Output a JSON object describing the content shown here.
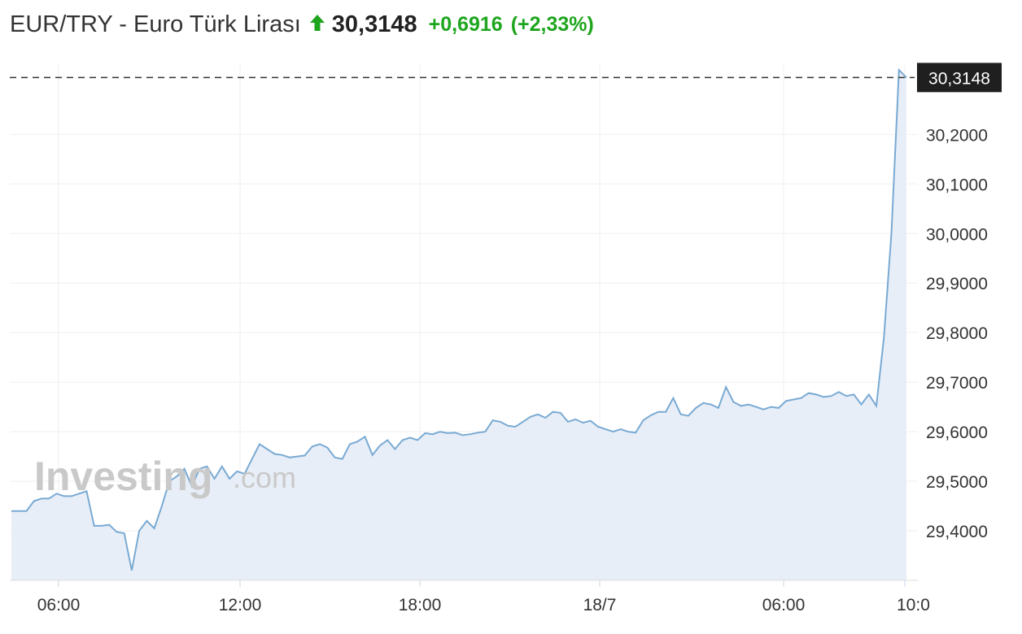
{
  "header": {
    "title": "EUR/TRY - Euro Türk Lirası",
    "price": "30,3148",
    "change": "+0,6916",
    "change_pct": "(+2,33%)"
  },
  "colors": {
    "up": "#1ea51e",
    "line": "#79aad3",
    "fill": "#e8eef7",
    "grid": "#efefef",
    "label_bg": "#1f1f1f"
  },
  "watermark": {
    "brand": "Investing",
    "suffix": ".com"
  },
  "chart_data": {
    "type": "area",
    "ylim": [
      29.3,
      30.34
    ],
    "y_ticks": [
      "29,4000",
      "29,5000",
      "29,6000",
      "29,7000",
      "29,8000",
      "29,9000",
      "30,0000",
      "30,1000",
      "30,2000"
    ],
    "x_ticks": [
      "06:00",
      "12:00",
      "18:00",
      "18/7",
      "06:00",
      "10:0"
    ],
    "last_value": 30.3148,
    "last_label": "30,3148",
    "values": [
      29.44,
      29.44,
      29.44,
      29.46,
      29.465,
      29.465,
      29.475,
      29.47,
      29.47,
      29.475,
      29.48,
      29.41,
      29.41,
      29.412,
      29.398,
      29.395,
      29.32,
      29.4,
      29.42,
      29.405,
      29.45,
      29.5,
      29.51,
      29.525,
      29.49,
      29.525,
      29.53,
      29.505,
      29.53,
      29.505,
      29.52,
      29.515,
      29.545,
      29.575,
      29.565,
      29.555,
      29.553,
      29.548,
      29.55,
      29.552,
      29.57,
      29.575,
      29.568,
      29.548,
      29.545,
      29.575,
      29.58,
      29.59,
      29.553,
      29.572,
      29.583,
      29.565,
      29.583,
      29.588,
      29.583,
      29.597,
      29.595,
      29.6,
      29.597,
      29.598,
      29.593,
      29.595,
      29.598,
      29.6,
      29.623,
      29.62,
      29.612,
      29.61,
      29.62,
      29.63,
      29.635,
      29.628,
      29.64,
      29.638,
      29.62,
      29.625,
      29.618,
      29.622,
      29.61,
      29.605,
      29.6,
      29.605,
      29.6,
      29.598,
      29.623,
      29.633,
      29.64,
      29.64,
      29.668,
      29.635,
      29.632,
      29.648,
      29.658,
      29.655,
      29.648,
      29.69,
      29.66,
      29.652,
      29.655,
      29.65,
      29.645,
      29.65,
      29.648,
      29.662,
      29.665,
      29.668,
      29.678,
      29.675,
      29.67,
      29.672,
      29.68,
      29.672,
      29.675,
      29.655,
      29.675,
      29.652,
      29.79,
      30.0,
      30.33,
      30.3148
    ]
  }
}
